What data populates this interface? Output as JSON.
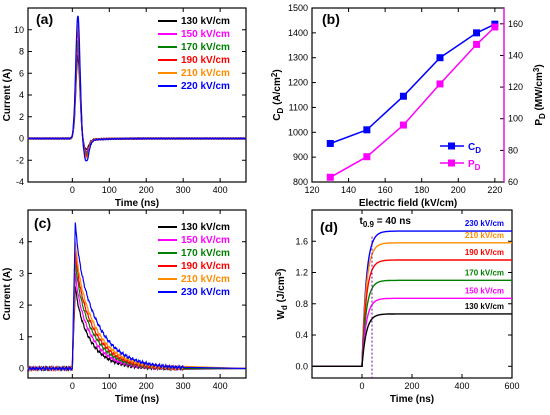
{
  "chart_data": [
    {
      "panel": "(a)",
      "type": "line",
      "xlabel": "Time (ns)",
      "ylabel": "Current (A)",
      "xlim": [
        -120,
        470
      ],
      "ylim": [
        -4,
        12
      ],
      "xticks": [
        0,
        100,
        200,
        300,
        400
      ],
      "yticks": [
        -4,
        -2,
        0,
        2,
        4,
        6,
        8,
        10
      ],
      "legend_position": "top-right",
      "series": [
        {
          "name": "130 kV/cm",
          "color": "#000000",
          "peak": 7.5,
          "dip": -1.0
        },
        {
          "name": "150 kV/cm",
          "color": "#ff00ff",
          "peak": 8.3,
          "dip": -1.2
        },
        {
          "name": "170 kV/cm",
          "color": "#008000",
          "peak": 8.9,
          "dip": -1.4
        },
        {
          "name": "190 kV/cm",
          "color": "#ff0000",
          "peak": 9.8,
          "dip": -1.6
        },
        {
          "name": "210 kV/cm",
          "color": "#ff8c00",
          "peak": 10.5,
          "dip": -1.8
        },
        {
          "name": "220 kV/cm",
          "color": "#0000ff",
          "peak": 11.3,
          "dip": -2.1
        }
      ]
    },
    {
      "panel": "(b)",
      "type": "line",
      "xlabel": "Electric field (kV/cm)",
      "ylabel": "C_D (A/cm^2)",
      "ylabel_right": "P_D (MW/cm^3)",
      "xlim": [
        120,
        225
      ],
      "ylim": [
        800,
        1500
      ],
      "ylim_right": [
        60,
        170
      ],
      "xticks": [
        120,
        140,
        160,
        180,
        200,
        220
      ],
      "yticks": [
        800,
        900,
        1000,
        1100,
        1200,
        1300,
        1400,
        1500
      ],
      "yticks_right": [
        60,
        80,
        100,
        120,
        140,
        160
      ],
      "x": [
        130,
        150,
        170,
        190,
        210,
        220
      ],
      "legend_position": "bottom-right",
      "series": [
        {
          "name": "C",
          "sub": "D",
          "color": "#0000ff",
          "axis": "left",
          "values": [
            955,
            1010,
            1145,
            1300,
            1400,
            1435
          ]
        },
        {
          "name": "P",
          "sub": "D",
          "color": "#ff00ff",
          "axis": "right",
          "values": [
            63,
            76,
            96,
            122,
            147,
            158
          ]
        }
      ]
    },
    {
      "panel": "(c)",
      "type": "line",
      "xlabel": "Time (ns)",
      "ylabel": "Current (A)",
      "xlim": [
        -120,
        470
      ],
      "ylim": [
        -0.3,
        5
      ],
      "xticks": [
        0,
        100,
        200,
        300,
        400
      ],
      "yticks": [
        0,
        1,
        2,
        3,
        4
      ],
      "legend_position": "top-right",
      "series": [
        {
          "name": "130 kV/cm",
          "color": "#000000",
          "peak": 2.6
        },
        {
          "name": "150 kV/cm",
          "color": "#ff00ff",
          "peak": 3.0
        },
        {
          "name": "170 kV/cm",
          "color": "#008000",
          "peak": 3.4
        },
        {
          "name": "190 kV/cm",
          "color": "#ff0000",
          "peak": 3.7
        },
        {
          "name": "210 kV/cm",
          "color": "#ff8c00",
          "peak": 4.0
        },
        {
          "name": "230 kV/cm",
          "color": "#0000ff",
          "peak": 4.6
        }
      ]
    },
    {
      "panel": "(d)",
      "type": "line",
      "xlabel": "Time (ns)",
      "ylabel": "W_d (J/cm^3)",
      "xlim": [
        -200,
        600
      ],
      "ylim": [
        -0.15,
        2.0
      ],
      "xticks": [
        0,
        200,
        400,
        600
      ],
      "yticks": [
        0.0,
        0.4,
        0.8,
        1.2,
        1.6
      ],
      "annotation": "t",
      "annotation_sub": "0.9",
      "annotation_rest": " = 40 ns",
      "annotation_x": 40,
      "series": [
        {
          "name": "230 kV/cm",
          "color": "#0000ff",
          "plateau": 1.73
        },
        {
          "name": "210 kV/cm",
          "color": "#ff8c00",
          "plateau": 1.58
        },
        {
          "name": "190 kV/cm",
          "color": "#ff0000",
          "plateau": 1.36
        },
        {
          "name": "170 kV/cm",
          "color": "#008000",
          "plateau": 1.1
        },
        {
          "name": "150 kV/cm",
          "color": "#ff00ff",
          "plateau": 0.87
        },
        {
          "name": "130 kV/cm",
          "color": "#000000",
          "plateau": 0.67
        }
      ]
    }
  ]
}
